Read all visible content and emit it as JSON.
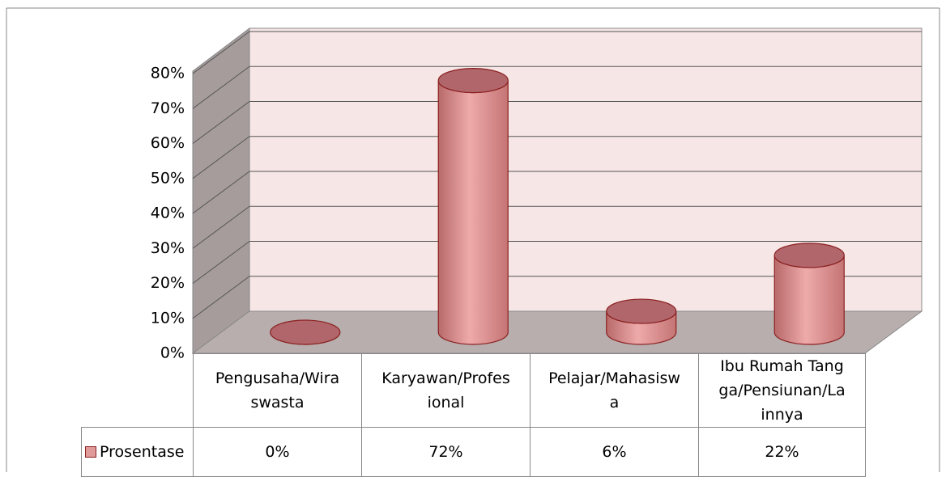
{
  "chart_data": {
    "type": "bar3d-cylinder",
    "categories": [
      "Pengusaha/Wiraswasta",
      "Karyawan/Profesional",
      "Pelajar/Mahasiswa",
      "Ibu Rumah Tangga/Pensiunan/Lainnya"
    ],
    "series": [
      {
        "name": "Prosentase",
        "color": "#e09a9a",
        "values": [
          0,
          72,
          6,
          22
        ],
        "value_labels": [
          "0%",
          "72%",
          "6%",
          "22%"
        ]
      }
    ],
    "ylim": [
      0,
      80
    ],
    "yticks": [
      {
        "value": 0,
        "label": "0%"
      },
      {
        "value": 10,
        "label": "10%"
      },
      {
        "value": 20,
        "label": "20%"
      },
      {
        "value": 30,
        "label": "30%"
      },
      {
        "value": 40,
        "label": "40%"
      },
      {
        "value": 50,
        "label": "50%"
      },
      {
        "value": 60,
        "label": "60%"
      },
      {
        "value": 70,
        "label": "70%"
      },
      {
        "value": 80,
        "label": "80%"
      }
    ],
    "grid": true
  }
}
